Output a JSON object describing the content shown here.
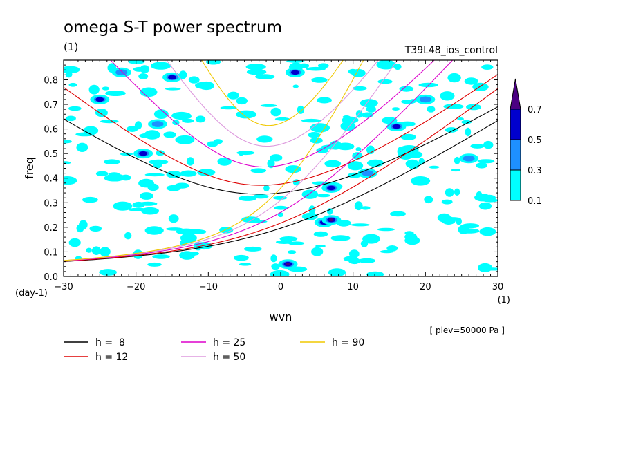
{
  "chart_data": {
    "type": "heatmap",
    "title": "omega S-T power spectrum",
    "title_units": "(1)",
    "experiment": "T39L48_ios_control",
    "xlabel": "wvn",
    "x_units": "(1)",
    "ylabel": "freq",
    "y_units": "(day-1)",
    "xlim": [
      -30,
      30
    ],
    "ylim": [
      0,
      0.88
    ],
    "xticks": [
      "−30",
      "−20",
      "−10",
      "0",
      "10",
      "20",
      "30"
    ],
    "yticks": [
      "0.0",
      "0.1",
      "0.2",
      "0.3",
      "0.4",
      "0.5",
      "0.6",
      "0.7",
      "0.8"
    ],
    "annotation": "[ plev=50000 Pa ]",
    "colorbar": {
      "levels": [
        "0.1",
        "0.3",
        "0.5",
        "0.7"
      ],
      "colors": [
        "#00ffff",
        "#1e90ff",
        "#0000cd",
        "#4b0082"
      ]
    },
    "dispersion_curves": [
      {
        "label": "h =  8",
        "h": 8,
        "color": "#000000"
      },
      {
        "label": "h = 12",
        "h": 12,
        "color": "#dd0000"
      },
      {
        "label": "h = 25",
        "h": 25,
        "color": "#dd00cc"
      },
      {
        "label": "h = 50",
        "h": 50,
        "color": "#dd99dd"
      },
      {
        "label": "h = 90",
        "h": 90,
        "color": "#f0c800"
      }
    ],
    "highlights": [
      {
        "x": -25,
        "y": 0.72,
        "level": 2
      },
      {
        "x": -22,
        "y": 0.83,
        "level": 1
      },
      {
        "x": -15,
        "y": 0.81,
        "level": 2
      },
      {
        "x": -19,
        "y": 0.5,
        "level": 2
      },
      {
        "x": -17,
        "y": 0.62,
        "level": 1
      },
      {
        "x": 1,
        "y": 0.05,
        "level": 3
      },
      {
        "x": 6,
        "y": 0.22,
        "level": 2
      },
      {
        "x": 7,
        "y": 0.23,
        "level": 3
      },
      {
        "x": 7,
        "y": 0.36,
        "level": 2
      },
      {
        "x": 16,
        "y": 0.61,
        "level": 2
      },
      {
        "x": 12,
        "y": 0.42,
        "level": 1
      },
      {
        "x": 2,
        "y": 0.83,
        "level": 2
      },
      {
        "x": 20,
        "y": 0.72,
        "level": 1
      },
      {
        "x": 26,
        "y": 0.48,
        "level": 1
      }
    ]
  }
}
